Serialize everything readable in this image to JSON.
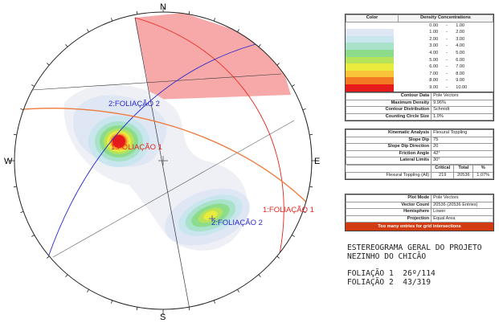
{
  "stereonet": {
    "compass": {
      "n": "N",
      "e": "E",
      "s": "S",
      "w": "W"
    },
    "plane_labels": [
      {
        "text": "1:FOLIAÇÃO 1",
        "color": "#e8251c"
      },
      {
        "text": "2:FOLIAÇÃO 2",
        "color": "#2a2ad0"
      }
    ],
    "pole_labels": [
      {
        "text": "1:FOLIAÇÃO 1",
        "color": "#e8251c"
      },
      {
        "text": "2:FOLIAÇÃO 2",
        "color": "#2a2ad0"
      }
    ],
    "orange_plane_color": "#f07a3a",
    "friction_cone_fill": "#f7a8a8"
  },
  "legend": {
    "header_color": "Color",
    "header_density": "Density Concentrations",
    "rows": [
      {
        "from": "0.00",
        "to": "1.00",
        "color": "#ffffff"
      },
      {
        "from": "1.00",
        "to": "2.00",
        "color": "#dfe6f4"
      },
      {
        "from": "2.00",
        "to": "3.00",
        "color": "#c9e6ee"
      },
      {
        "from": "3.00",
        "to": "4.00",
        "color": "#a8e2c8"
      },
      {
        "from": "4.00",
        "to": "5.00",
        "color": "#8ddc8c"
      },
      {
        "from": "5.00",
        "to": "6.00",
        "color": "#b7e35a"
      },
      {
        "from": "6.00",
        "to": "7.00",
        "color": "#e9ec3c"
      },
      {
        "from": "7.00",
        "to": "8.00",
        "color": "#f9c33a"
      },
      {
        "from": "8.00",
        "to": "9.00",
        "color": "#f27a22"
      },
      {
        "from": "9.00",
        "to": "10.00",
        "color": "#e61a1a"
      }
    ],
    "dash": "-"
  },
  "contour": [
    {
      "label": "Contour Data",
      "value": "Pole Vectors"
    },
    {
      "label": "Maximum Density",
      "value": "9.96%"
    },
    {
      "label": "Contour Distribution",
      "value": "Schmidt"
    },
    {
      "label": "Counting Circle Size",
      "value": "1.0%"
    }
  ],
  "kinematic": [
    {
      "label": "Kinematic Analysis",
      "value": "Flexural Toppling"
    },
    {
      "label": "Slope Dip",
      "value": "75"
    },
    {
      "label": "Slope Dip Direction",
      "value": "20"
    },
    {
      "label": "Friction Angle",
      "value": "42°"
    },
    {
      "label": "Lateral Limits",
      "value": "30°"
    }
  ],
  "critical": {
    "headers": [
      "Critical",
      "Total",
      "%"
    ],
    "row_label": "Flexural Toppling (All)",
    "values": [
      "219",
      "20536",
      "1.07%"
    ]
  },
  "plot": [
    {
      "label": "Plot Mode",
      "value": "Pole Vectors"
    },
    {
      "label": "Vector Count",
      "value": "20536 (20536 Entries)"
    },
    {
      "label": "Hemisphere",
      "value": "Lower"
    },
    {
      "label": "Projection",
      "value": "Equal Area"
    }
  ],
  "warning": "Too many entries for grid intersections",
  "caption": {
    "title_line1": "ESTEREOGRAMA GERAL DO PROJETO",
    "title_line2": "NEZINHO DO CHICÃO",
    "foliation1": "FOLIAÇÃO 1  26º/114",
    "foliation2": "FOLIAÇÃO 2  43/319"
  }
}
